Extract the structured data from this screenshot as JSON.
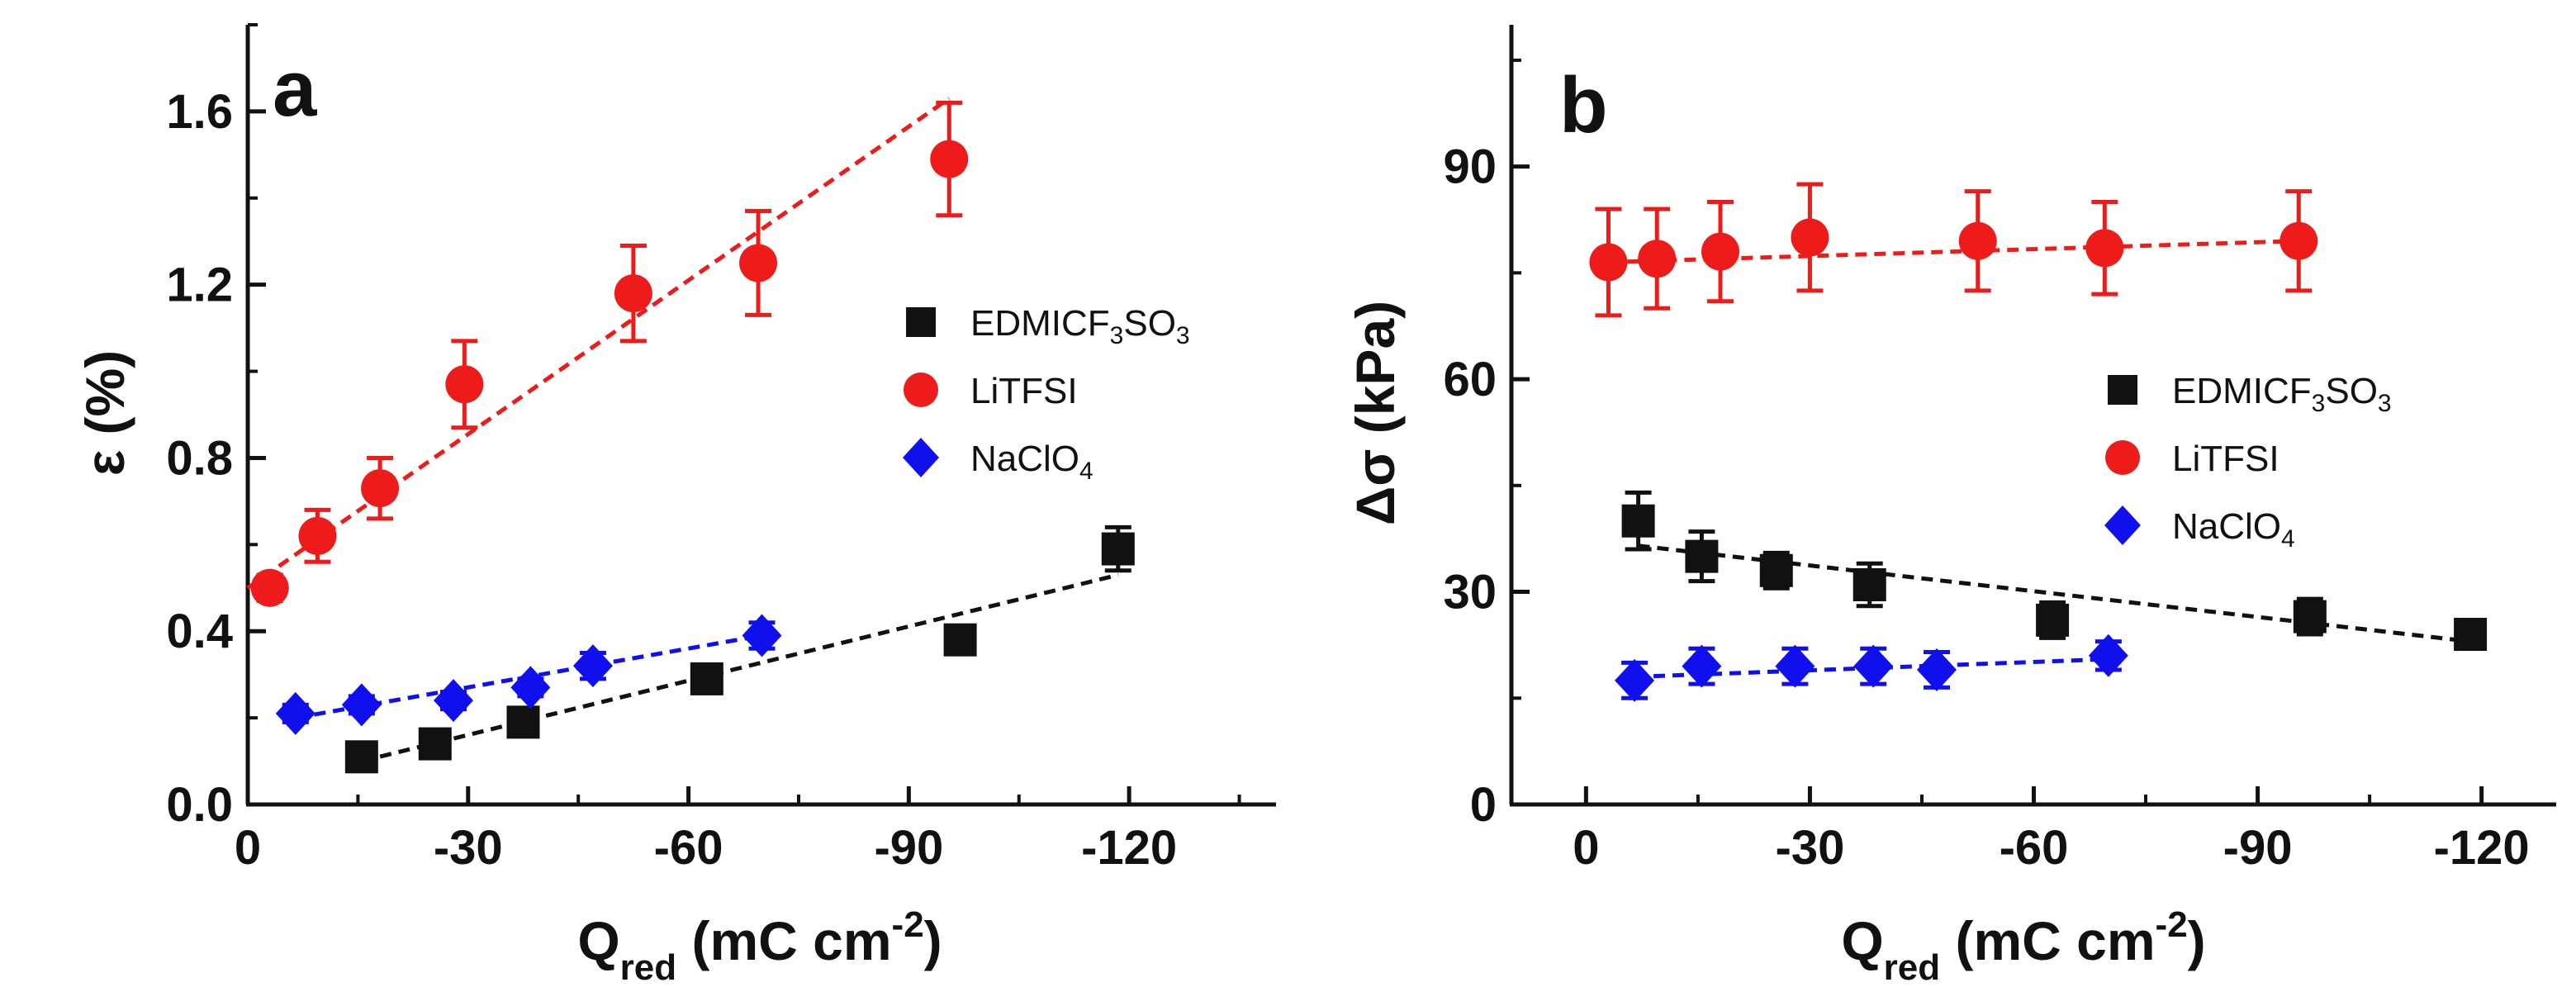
{
  "colors": {
    "EDMICF3SO3": "#111111",
    "LiTFSI": "#ee1b1b",
    "NaClO4": "#1010ee",
    "axis": "#111111"
  },
  "chart_data": [
    {
      "type": "scatter",
      "panel_label": "a",
      "xlabel": {
        "main": "Q",
        "sub": "red",
        "units": " (mC cm",
        "exp": "-2",
        "close": ")"
      },
      "ylabel": {
        "main": "ε (%)"
      },
      "xlim": [
        0,
        -140
      ],
      "ylim": [
        0,
        1.8
      ],
      "xticks": [
        0,
        -30,
        -60,
        -90,
        -120
      ],
      "xtick_labels": [
        "0",
        "-30",
        "-60",
        "-90",
        "-120"
      ],
      "yticks": [
        0.0,
        0.4,
        0.8,
        1.2,
        1.6
      ],
      "ytick_labels": [
        "0.0",
        "0.4",
        "0.8",
        "1.2",
        "1.6"
      ],
      "legend_position": "center-right",
      "series": [
        {
          "name": "EDMICF3SO3",
          "legend": {
            "main": "EDMICF",
            "sub": "3",
            "rest": "SO",
            "sub2": "3"
          },
          "marker": "square",
          "color_key": "EDMICF3SO3",
          "x": [
            -15.5,
            -25.5,
            -37.5,
            -62.5,
            -97,
            -118.5
          ],
          "y": [
            0.11,
            0.14,
            0.19,
            0.29,
            0.38,
            0.59
          ],
          "err": [
            0.02,
            0.02,
            0.02,
            0.02,
            0.03,
            0.05
          ],
          "fit": {
            "x": [
              -15.5,
              -118.5
            ],
            "y": [
              0.1,
              0.53
            ]
          }
        },
        {
          "name": "LiTFSI",
          "legend": {
            "main": "LiTFSI",
            "sub": "",
            "rest": "",
            "sub2": ""
          },
          "marker": "circle",
          "color_key": "LiTFSI",
          "x": [
            -3,
            -9.5,
            -18,
            -29.5,
            -52.5,
            -69.5,
            -95.5
          ],
          "y": [
            0.5,
            0.62,
            0.73,
            0.97,
            1.18,
            1.25,
            1.49
          ],
          "err": [
            0.03,
            0.06,
            0.07,
            0.1,
            0.11,
            0.12,
            0.13
          ],
          "fit": {
            "x": [
              0,
              -95.5
            ],
            "y": [
              0.5,
              1.63
            ]
          }
        },
        {
          "name": "NaClO4",
          "legend": {
            "main": "NaClO",
            "sub": "4",
            "rest": "",
            "sub2": ""
          },
          "marker": "diamond",
          "color_key": "NaClO4",
          "x": [
            -6.5,
            -15.5,
            -28,
            -38.5,
            -47,
            -70
          ],
          "y": [
            0.21,
            0.23,
            0.24,
            0.27,
            0.32,
            0.39
          ],
          "err": [
            0.02,
            0.02,
            0.02,
            0.02,
            0.03,
            0.03
          ],
          "fit": {
            "x": [
              -6.5,
              -70
            ],
            "y": [
              0.2,
              0.39
            ]
          }
        }
      ]
    },
    {
      "type": "scatter",
      "panel_label": "b",
      "xlabel": {
        "main": "Q",
        "sub": "red",
        "units": " (mC cm",
        "exp": "-2",
        "close": ")"
      },
      "ylabel": {
        "main": "Δσ (kPa)"
      },
      "xlim": [
        10,
        -130
      ],
      "ylim": [
        0,
        110
      ],
      "xticks": [
        0,
        -30,
        -60,
        -90,
        -120
      ],
      "xtick_labels": [
        "0",
        "-30",
        "-60",
        "-90",
        "-120"
      ],
      "yticks": [
        0,
        30,
        60,
        90
      ],
      "ytick_labels": [
        "0",
        "30",
        "60",
        "90"
      ],
      "legend_position": "center-right",
      "series": [
        {
          "name": "EDMICF3SO3",
          "legend": {
            "main": "EDMICF",
            "sub": "3",
            "rest": "SO",
            "sub2": "3"
          },
          "marker": "square",
          "color_key": "EDMICF3SO3",
          "x": [
            -7,
            -15.5,
            -25.5,
            -38,
            -62.5,
            -97,
            -118.5
          ],
          "y": [
            40,
            35,
            33,
            31,
            26,
            26.5,
            24
          ],
          "err": [
            4,
            3.5,
            2.5,
            3,
            2.5,
            2.5,
            2
          ],
          "fit": {
            "x": [
              -7,
              -118.5
            ],
            "y": [
              36.5,
              23
            ]
          }
        },
        {
          "name": "LiTFSI",
          "legend": {
            "main": "LiTFSI",
            "sub": "",
            "rest": "",
            "sub2": ""
          },
          "marker": "circle",
          "color_key": "LiTFSI",
          "x": [
            -3,
            -9.5,
            -18,
            -30,
            -52.5,
            -69.5,
            -95.5
          ],
          "y": [
            76.5,
            77,
            78,
            80,
            79.5,
            78.5,
            79.5
          ],
          "err": [
            7.5,
            7,
            7,
            7.5,
            7,
            6.5,
            7
          ],
          "fit": {
            "x": [
              -3,
              -95.5
            ],
            "y": [
              76.5,
              79.5
            ]
          }
        },
        {
          "name": "NaClO4",
          "legend": {
            "main": "NaClO",
            "sub": "4",
            "rest": "",
            "sub2": ""
          },
          "marker": "diamond",
          "color_key": "NaClO4",
          "x": [
            -6.5,
            -15.5,
            -28,
            -38.5,
            -47,
            -70
          ],
          "y": [
            17.5,
            19.5,
            19.5,
            19.5,
            19,
            21
          ],
          "err": [
            2.5,
            2.5,
            2.5,
            2.5,
            2.5,
            2
          ],
          "fit": {
            "x": [
              -6.5,
              -70
            ],
            "y": [
              18,
              20.5
            ]
          }
        }
      ]
    }
  ]
}
